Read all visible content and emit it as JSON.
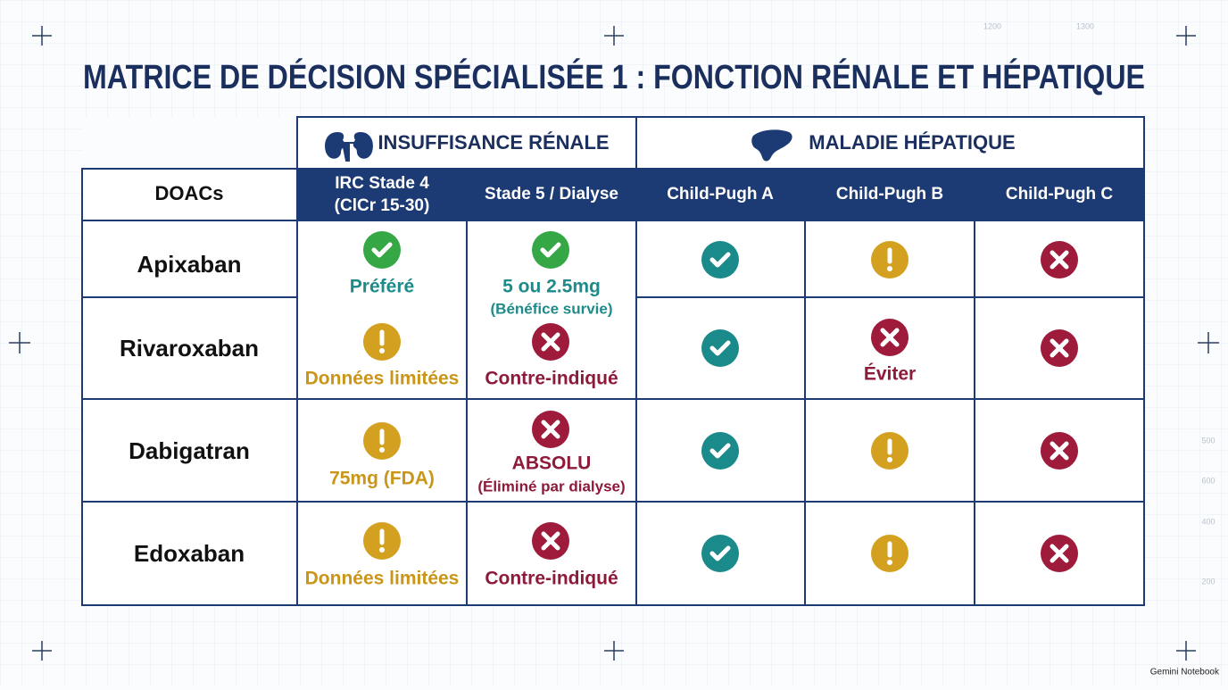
{
  "title": "MATRICE DE DÉCISION SPÉCIALISÉE 1 : FONCTION RÉNALE ET HÉPATIQUE",
  "table": {
    "groups": [
      "INSUFFISANCE RÉNALE",
      "MALADIE HÉPATIQUE"
    ],
    "header": {
      "drug": "DOACs",
      "renal_stage4": [
        "IRC Stade 4",
        "(ClCr 15-30)"
      ],
      "renal_stage5": "Stade 5 / Dialyse",
      "child_pugh_a": "Child-Pugh A",
      "child_pugh_b": "Child-Pugh B",
      "child_pugh_c": "Child-Pugh C"
    },
    "rows": [
      {
        "drug": "Apixaban",
        "renal_stage4": "Préféré",
        "renal_stage5": [
          "5 ou 2.5mg",
          "(Bénéfice survie)"
        ]
      },
      {
        "drug": "Rivaroxaban",
        "renal_stage4": "Données limitées",
        "renal_stage5": "Contre-indiqué",
        "child_pugh_b": "Éviter"
      },
      {
        "drug": "Dabigatran",
        "renal_stage4": "75mg (FDA)",
        "renal_stage5": [
          "ABSOLU",
          "(Éliminé par dialyse)"
        ]
      },
      {
        "drug": "Edoxaban",
        "renal_stage4": "Données limitées",
        "renal_stage5": "Contre-indiqué"
      }
    ]
  },
  "decor_labels": [
    "1200",
    "1300",
    "500",
    "600",
    "400",
    "200"
  ],
  "footer": "Gemini Notebook"
}
